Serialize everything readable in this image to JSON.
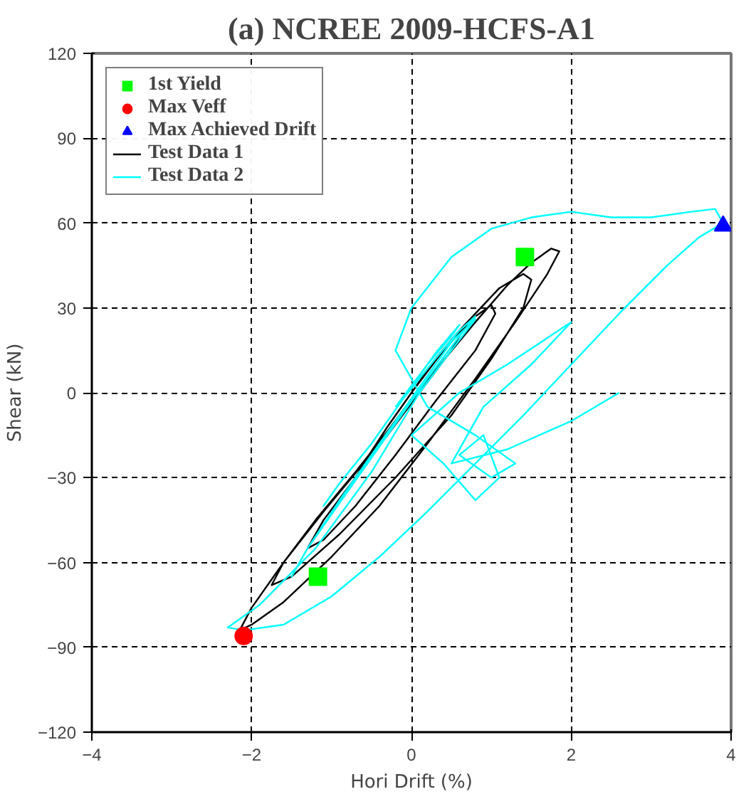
{
  "chart_data": {
    "type": "line",
    "title": "(a) NCREE 2009-HCFS-A1",
    "xlabel": "Hori Drift (%)",
    "ylabel": "Shear (kN)",
    "xlim": [
      -4,
      4
    ],
    "ylim": [
      -120,
      120
    ],
    "xticks": [
      -4,
      -2,
      0,
      2,
      4
    ],
    "yticks": [
      -120,
      -90,
      -60,
      -30,
      0,
      30,
      60,
      90,
      120
    ],
    "grid": true,
    "legend": "top left",
    "line_style": "solid",
    "series": [
      {
        "name": "1st Yield",
        "type": "scatter",
        "marker": "square",
        "color": "#00ff00",
        "x": [
          1.42,
          -1.17
        ],
        "values": [
          48,
          -65
        ]
      },
      {
        "name": "Max Veff",
        "type": "scatter",
        "marker": "circle",
        "color": "#ff0000",
        "x": [
          -2.1
        ],
        "values": [
          -86
        ]
      },
      {
        "name": "Max Achieved Drift",
        "type": "scatter",
        "marker": "triangle",
        "color": "#0000ff",
        "x": [
          3.9
        ],
        "values": [
          59
        ]
      },
      {
        "name": "Test Data 1",
        "color": "#000000",
        "x": [
          0,
          0.3,
          0.6,
          0.7,
          0.5,
          0.1,
          -0.3,
          -0.7,
          -0.9,
          -0.6,
          -0.3,
          0,
          0.4,
          0.8,
          1.0,
          1.05,
          0.8,
          0.3,
          -0.2,
          -0.7,
          -1.1,
          -1.3,
          -1.1,
          -0.7,
          -0.3,
          0.2,
          0.7,
          1.1,
          1.4,
          1.5,
          1.4,
          1.0,
          0.5,
          -0.2,
          -0.9,
          -1.5,
          -1.75,
          -1.6,
          -1.2,
          -0.7,
          -0.2,
          0.3,
          0.8,
          1.2,
          1.5,
          1.75,
          1.85,
          1.7,
          1.3,
          0.8,
          0.2,
          -0.4,
          -1.0,
          -1.6,
          -2.0,
          -2.15,
          -2.0,
          -1.6,
          -1.1,
          -0.6,
          -0.1,
          0.2
        ],
        "values": [
          0,
          12,
          22,
          25,
          15,
          0,
          -15,
          -28,
          -35,
          -25,
          -12,
          0,
          15,
          27,
          31,
          28,
          15,
          -3,
          -22,
          -40,
          -52,
          -55,
          -45,
          -30,
          -12,
          8,
          25,
          37,
          42,
          40,
          30,
          12,
          -8,
          -30,
          -50,
          -65,
          -68,
          -60,
          -45,
          -28,
          -10,
          8,
          25,
          38,
          46,
          51,
          50,
          42,
          25,
          5,
          -18,
          -40,
          -58,
          -74,
          -82,
          -84,
          -76,
          -60,
          -42,
          -25,
          -6,
          5
        ]
      },
      {
        "name": "Test Data 2",
        "color": "#00ffff",
        "x": [
          -0.2,
          0.2,
          0.5,
          0.6,
          0.3,
          -0.1,
          -0.5,
          -0.9,
          -1.1,
          -0.9,
          -0.5,
          -0.1,
          0.3,
          0.6,
          0.8,
          0.6,
          0.2,
          -0.3,
          -0.8,
          -1.3,
          -1.5,
          -1.3,
          -0.9,
          -0.4,
          0.1,
          0.5,
          0.8,
          0.5,
          0.1,
          -0.5,
          -1.2,
          -1.9,
          -2.3,
          -2.1,
          -1.6,
          -1.0,
          -0.4,
          0.2,
          0.8,
          1.4,
          2.0,
          2.6,
          3.2,
          3.6,
          3.9,
          3.8,
          3.5,
          3.0,
          2.5,
          2.0,
          1.5,
          1.0,
          0.5,
          0.0,
          -0.2,
          0.2,
          0.8,
          1.3,
          1.0,
          0.6,
          0.9,
          1.1,
          0.8,
          0.4,
          0.0,
          0.6,
          1.2,
          2.0,
          1.5,
          0.9,
          0.5,
          1.2,
          2.0,
          2.6
        ],
        "values": [
          -5,
          10,
          20,
          24,
          14,
          -2,
          -18,
          -32,
          -40,
          -32,
          -18,
          -2,
          12,
          22,
          27,
          20,
          5,
          -15,
          -35,
          -55,
          -65,
          -55,
          -38,
          -18,
          2,
          18,
          26,
          15,
          0,
          -28,
          -55,
          -75,
          -83,
          -84,
          -82,
          -72,
          -58,
          -42,
          -25,
          -8,
          10,
          28,
          45,
          55,
          60,
          65,
          64,
          62,
          62,
          64,
          62,
          58,
          48,
          30,
          15,
          -5,
          -15,
          -25,
          -30,
          -22,
          -15,
          -30,
          -38,
          -25,
          -15,
          0,
          10,
          25,
          10,
          -5,
          -25,
          -20,
          -10,
          0
        ]
      }
    ]
  }
}
